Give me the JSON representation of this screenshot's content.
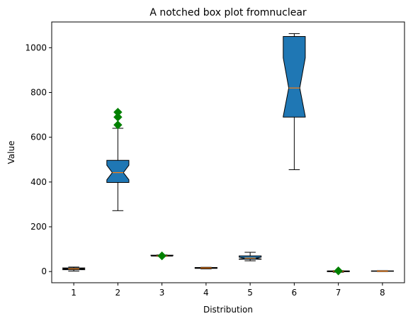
{
  "chart_data": {
    "type": "box",
    "title": "A notched box plot fromnuclear",
    "xlabel": "Distribution",
    "ylabel": "Value",
    "categories": [
      "1",
      "2",
      "3",
      "4",
      "5",
      "6",
      "7",
      "8"
    ],
    "ylim": [
      -50,
      1115
    ],
    "yticks": [
      0,
      200,
      400,
      600,
      800,
      1000
    ],
    "colors": {
      "box": "#1f77b4",
      "median": "#ff7f0e",
      "flier": "#008000"
    },
    "boxes": [
      {
        "whislo": 2,
        "q1": 8,
        "med": 12,
        "q3": 16,
        "whishi": 20,
        "notch_lo": 10,
        "notch_hi": 14,
        "fliers": []
      },
      {
        "whislo": 272,
        "q1": 398,
        "med": 442,
        "q3": 497,
        "whishi": 640,
        "notch_lo": 410,
        "notch_hi": 475,
        "fliers": [
          655,
          690,
          712
        ]
      },
      {
        "whislo": 68,
        "q1": 69,
        "med": 70,
        "q3": 73,
        "whishi": 74,
        "notch_lo": 69,
        "notch_hi": 71,
        "fliers": [
          70
        ]
      },
      {
        "whislo": 12,
        "q1": 14,
        "med": 16,
        "q3": 18,
        "whishi": 19,
        "notch_lo": 15,
        "notch_hi": 17,
        "fliers": []
      },
      {
        "whislo": 48,
        "q1": 55,
        "med": 60,
        "q3": 70,
        "whishi": 86,
        "notch_lo": 56,
        "notch_hi": 64,
        "fliers": []
      },
      {
        "whislo": 455,
        "q1": 690,
        "med": 820,
        "q3": 1050,
        "whishi": 1063,
        "notch_lo": 693,
        "notch_hi": 955,
        "fliers": []
      },
      {
        "whislo": -3,
        "q1": -1,
        "med": 1,
        "q3": 3,
        "whishi": 4,
        "notch_lo": 0,
        "notch_hi": 2,
        "fliers": [
          3
        ]
      },
      {
        "whislo": 0,
        "q1": 1,
        "med": 2,
        "q3": 3,
        "whishi": 4,
        "notch_lo": 1.5,
        "notch_hi": 2.5,
        "fliers": []
      }
    ]
  }
}
